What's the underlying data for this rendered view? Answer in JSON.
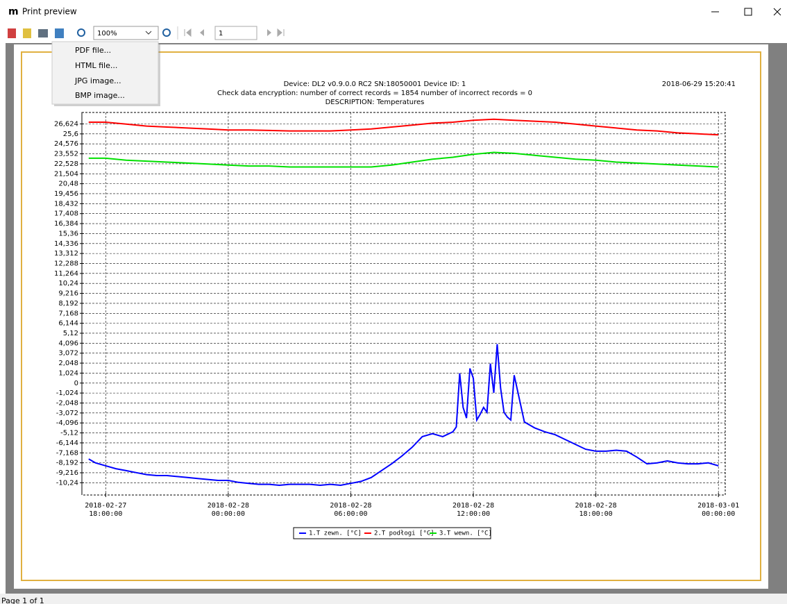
{
  "window": {
    "title": "Print preview"
  },
  "toolbar": {
    "zoom": "100%",
    "page": "1"
  },
  "menu": {
    "items": [
      "PDF file...",
      "HTML file...",
      "JPG image...",
      "BMP image..."
    ]
  },
  "report": {
    "header": [
      "Device: DL2 v0.9.0.0 RC2  SN:18050001  Device ID: 1",
      "Check data encryption: number of correct records = 1854 number of incorrect records = 0",
      "DESCRIPTION: Temperatures"
    ],
    "timestamp": "2018-06-29 15:20:41"
  },
  "status": "Page 1 of 1",
  "chart_data": {
    "type": "line",
    "grid": true,
    "legend": "bottom",
    "xlim": [
      "2018-02-27 16:50:00",
      "2018-03-01 00:20:00"
    ],
    "xticks": [
      "2018-02-27 18:00:00",
      "2018-02-28 00:00:00",
      "2018-02-28 06:00:00",
      "2018-02-28 12:00:00",
      "2018-02-28 18:00:00",
      "2018-03-01 00:00:00"
    ],
    "ylim": [
      -11.5,
      27.8
    ],
    "yticks": [
      {
        "value": -10.24,
        "label": "-10,24"
      },
      {
        "value": -9.216,
        "label": "-9,216"
      },
      {
        "value": -8.192,
        "label": "-8,192"
      },
      {
        "value": -7.168,
        "label": "-7,168"
      },
      {
        "value": -6.144,
        "label": "-6,144"
      },
      {
        "value": -5.12,
        "label": "-5,12"
      },
      {
        "value": -4.096,
        "label": "-4,096"
      },
      {
        "value": -3.072,
        "label": "-3,072"
      },
      {
        "value": -2.048,
        "label": "-2,048"
      },
      {
        "value": -1.024,
        "label": "-1,024"
      },
      0,
      {
        "value": 1.024,
        "label": "1,024"
      },
      {
        "value": 2.048,
        "label": "2,048"
      },
      {
        "value": 3.072,
        "label": "3,072"
      },
      {
        "value": 4.096,
        "label": "4,096"
      },
      {
        "value": 5.12,
        "label": "5,12"
      },
      {
        "value": 6.144,
        "label": "6,144"
      },
      {
        "value": 7.168,
        "label": "7,168"
      },
      {
        "value": 8.192,
        "label": "8,192"
      },
      {
        "value": 9.216,
        "label": "9,216"
      },
      {
        "value": 10.24,
        "label": "10,24"
      },
      {
        "value": 11.264,
        "label": "11,264"
      },
      {
        "value": 12.288,
        "label": "12,288"
      },
      {
        "value": 13.312,
        "label": "13,312"
      },
      {
        "value": 14.336,
        "label": "14,336"
      },
      {
        "value": 15.36,
        "label": "15,36"
      },
      {
        "value": 16.384,
        "label": "16,384"
      },
      {
        "value": 17.408,
        "label": "17,408"
      },
      {
        "value": 18.432,
        "label": "18,432"
      },
      {
        "value": 19.456,
        "label": "19,456"
      },
      {
        "value": 20.48,
        "label": "20,48"
      },
      {
        "value": 21.504,
        "label": "21,504"
      },
      {
        "value": 22.528,
        "label": "22,528"
      },
      {
        "value": 23.552,
        "label": "23,552"
      },
      {
        "value": 24.576,
        "label": "24,576"
      },
      {
        "value": 25.6,
        "label": "25,6"
      },
      {
        "value": 26.624,
        "label": "26,624"
      }
    ],
    "series": [
      {
        "name": "1.T zewn. [°C]",
        "color": "#0000ff",
        "x": [
          "2018-02-27 17:10:00",
          "2018-02-27 17:30:00",
          "2018-02-27 18:00:00",
          "2018-02-27 18:30:00",
          "2018-02-27 19:00:00",
          "2018-02-27 19:30:00",
          "2018-02-27 20:00:00",
          "2018-02-27 20:30:00",
          "2018-02-27 21:00:00",
          "2018-02-27 21:30:00",
          "2018-02-27 22:00:00",
          "2018-02-27 22:30:00",
          "2018-02-27 23:00:00",
          "2018-02-27 23:30:00",
          "2018-02-28 00:00:00",
          "2018-02-28 00:30:00",
          "2018-02-28 01:00:00",
          "2018-02-28 01:30:00",
          "2018-02-28 02:00:00",
          "2018-02-28 02:30:00",
          "2018-02-28 03:00:00",
          "2018-02-28 03:30:00",
          "2018-02-28 04:00:00",
          "2018-02-28 04:30:00",
          "2018-02-28 05:00:00",
          "2018-02-28 05:30:00",
          "2018-02-28 06:00:00",
          "2018-02-28 06:30:00",
          "2018-02-28 07:00:00",
          "2018-02-28 07:30:00",
          "2018-02-28 08:00:00",
          "2018-02-28 08:30:00",
          "2018-02-28 09:00:00",
          "2018-02-28 09:30:00",
          "2018-02-28 10:00:00",
          "2018-02-28 10:30:00",
          "2018-02-28 11:00:00",
          "2018-02-28 11:10:00",
          "2018-02-28 11:20:00",
          "2018-02-28 11:30:00",
          "2018-02-28 11:40:00",
          "2018-02-28 11:50:00",
          "2018-02-28 12:00:00",
          "2018-02-28 12:10:00",
          "2018-02-28 12:20:00",
          "2018-02-28 12:30:00",
          "2018-02-28 12:40:00",
          "2018-02-28 12:50:00",
          "2018-02-28 13:00:00",
          "2018-02-28 13:10:00",
          "2018-02-28 13:20:00",
          "2018-02-28 13:30:00",
          "2018-02-28 13:40:00",
          "2018-02-28 13:50:00",
          "2018-02-28 14:00:00",
          "2018-02-28 14:30:00",
          "2018-02-28 15:00:00",
          "2018-02-28 15:30:00",
          "2018-02-28 16:00:00",
          "2018-02-28 16:30:00",
          "2018-02-28 17:00:00",
          "2018-02-28 17:30:00",
          "2018-02-28 18:00:00",
          "2018-02-28 18:30:00",
          "2018-02-28 19:00:00",
          "2018-02-28 19:30:00",
          "2018-02-28 20:00:00",
          "2018-02-28 20:30:00",
          "2018-02-28 21:00:00",
          "2018-02-28 21:30:00",
          "2018-02-28 22:00:00",
          "2018-02-28 22:30:00",
          "2018-02-28 23:00:00",
          "2018-02-28 23:30:00",
          "2018-03-01 00:00:00"
        ],
        "values": [
          -7.8,
          -8.2,
          -8.5,
          -8.8,
          -9.0,
          -9.2,
          -9.4,
          -9.5,
          -9.5,
          -9.6,
          -9.7,
          -9.8,
          -9.9,
          -10.0,
          -10.0,
          -10.2,
          -10.3,
          -10.4,
          -10.4,
          -10.5,
          -10.4,
          -10.4,
          -10.4,
          -10.5,
          -10.4,
          -10.5,
          -10.3,
          -10.1,
          -9.7,
          -9.0,
          -8.3,
          -7.5,
          -6.6,
          -5.5,
          -5.2,
          -5.5,
          -5.0,
          -4.5,
          1.0,
          -2.5,
          -3.6,
          1.5,
          0.5,
          -3.8,
          -3.2,
          -2.5,
          -3.0,
          2.0,
          -1.0,
          4.0,
          -0.5,
          -3.0,
          -3.5,
          -3.8,
          0.8,
          -4.0,
          -4.6,
          -5.0,
          -5.3,
          -5.8,
          -6.3,
          -6.8,
          -7.0,
          -7.0,
          -6.9,
          -7.0,
          -7.6,
          -8.3,
          -8.2,
          -8.0,
          -8.2,
          -8.3,
          -8.3,
          -8.2,
          -8.5
        ]
      },
      {
        "name": "2.T podłogi [°C]",
        "color": "#ff0000",
        "x": [
          "2018-02-27 17:10:00",
          "2018-02-27 18:00:00",
          "2018-02-27 19:00:00",
          "2018-02-27 20:00:00",
          "2018-02-27 21:00:00",
          "2018-02-27 22:00:00",
          "2018-02-27 23:00:00",
          "2018-02-28 00:00:00",
          "2018-02-28 01:00:00",
          "2018-02-28 02:00:00",
          "2018-02-28 03:00:00",
          "2018-02-28 04:00:00",
          "2018-02-28 05:00:00",
          "2018-02-28 06:00:00",
          "2018-02-28 07:00:00",
          "2018-02-28 08:00:00",
          "2018-02-28 09:00:00",
          "2018-02-28 10:00:00",
          "2018-02-28 11:00:00",
          "2018-02-28 12:00:00",
          "2018-02-28 13:00:00",
          "2018-02-28 14:00:00",
          "2018-02-28 15:00:00",
          "2018-02-28 16:00:00",
          "2018-02-28 17:00:00",
          "2018-02-28 18:00:00",
          "2018-02-28 19:00:00",
          "2018-02-28 20:00:00",
          "2018-02-28 21:00:00",
          "2018-02-28 22:00:00",
          "2018-02-28 23:00:00",
          "2018-03-01 00:00:00"
        ],
        "values": [
          26.8,
          26.8,
          26.6,
          26.4,
          26.3,
          26.2,
          26.1,
          26.0,
          26.0,
          25.95,
          25.9,
          25.9,
          25.9,
          26.0,
          26.1,
          26.3,
          26.5,
          26.7,
          26.8,
          27.0,
          27.1,
          27.0,
          26.9,
          26.8,
          26.6,
          26.4,
          26.2,
          26.0,
          25.9,
          25.7,
          25.6,
          25.5
        ]
      },
      {
        "name": "3.T wewn. [°C]",
        "color": "#00e000",
        "x": [
          "2018-02-27 17:10:00",
          "2018-02-27 18:00:00",
          "2018-02-27 19:00:00",
          "2018-02-27 20:00:00",
          "2018-02-27 21:00:00",
          "2018-02-27 22:00:00",
          "2018-02-27 23:00:00",
          "2018-02-28 00:00:00",
          "2018-02-28 01:00:00",
          "2018-02-28 02:00:00",
          "2018-02-28 03:00:00",
          "2018-02-28 04:00:00",
          "2018-02-28 05:00:00",
          "2018-02-28 06:00:00",
          "2018-02-28 07:00:00",
          "2018-02-28 08:00:00",
          "2018-02-28 09:00:00",
          "2018-02-28 10:00:00",
          "2018-02-28 11:00:00",
          "2018-02-28 12:00:00",
          "2018-02-28 13:00:00",
          "2018-02-28 14:00:00",
          "2018-02-28 15:00:00",
          "2018-02-28 16:00:00",
          "2018-02-28 17:00:00",
          "2018-02-28 18:00:00",
          "2018-02-28 19:00:00",
          "2018-02-28 20:00:00",
          "2018-02-28 21:00:00",
          "2018-02-28 22:00:00",
          "2018-02-28 23:00:00",
          "2018-03-01 00:00:00"
        ],
        "values": [
          23.1,
          23.1,
          22.9,
          22.8,
          22.7,
          22.6,
          22.5,
          22.4,
          22.3,
          22.3,
          22.2,
          22.2,
          22.2,
          22.2,
          22.2,
          22.4,
          22.7,
          23.0,
          23.2,
          23.5,
          23.7,
          23.6,
          23.4,
          23.2,
          23.0,
          22.9,
          22.7,
          22.6,
          22.5,
          22.4,
          22.3,
          22.2
        ]
      }
    ]
  }
}
